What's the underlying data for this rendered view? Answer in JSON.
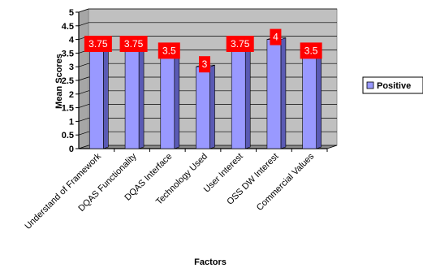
{
  "chart_data": {
    "type": "bar",
    "categories": [
      "Understand of Framework",
      "DQAS Functionality",
      "DQAS Interface",
      "Technology Used",
      "User Interest",
      "OSS DW Interest",
      "Commercial Values"
    ],
    "series": [
      {
        "name": "Positive",
        "values": [
          3.75,
          3.75,
          3.5,
          3,
          3.75,
          4,
          3.5
        ]
      }
    ],
    "data_labels": [
      "3.75",
      "3.75",
      "3.5",
      "3",
      "3.75",
      "4",
      "3.5"
    ],
    "xlabel": "Factors",
    "ylabel": "Mean Scores",
    "ylim": [
      0,
      5
    ],
    "yticks": [
      "0",
      "0.5",
      "1",
      "1.5",
      "2",
      "2.5",
      "3",
      "3.5",
      "4",
      "4.5",
      "5"
    ],
    "grid": true,
    "legend_position": "right",
    "colors": {
      "bar": "#9999ff",
      "bar_side": "#5a5ab4",
      "bar_top": "#c8c8ff",
      "plot_wall": "#c0c0c0",
      "plot_floor": "#8c8c8c",
      "label_box": "#ff0000",
      "label_text": "#ffffff"
    }
  }
}
